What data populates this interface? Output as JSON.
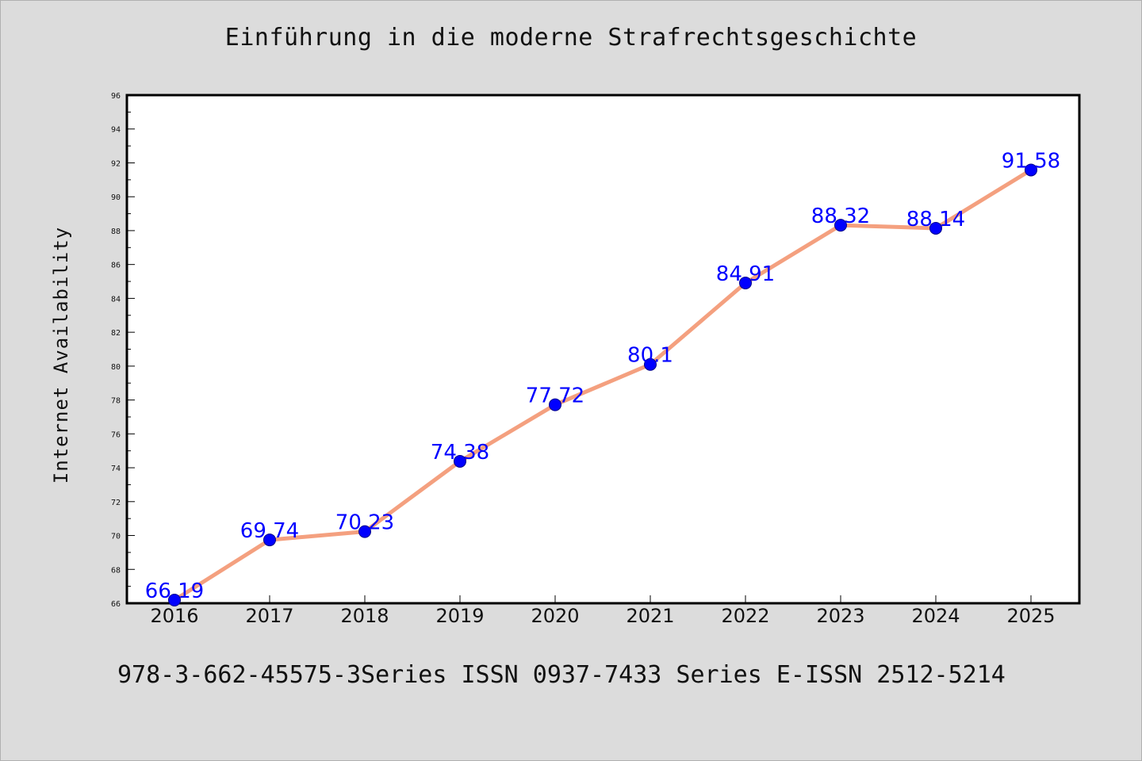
{
  "colors": {
    "line": "#f4a07f",
    "marker": "#0000ff",
    "data_label": "#0000ff",
    "background": "#dcdcdc",
    "plot_background": "#ffffff"
  },
  "footer_text": "978-3-662-45575-3Series ISSN 0937-7433 Series E-ISSN 2512-5214",
  "chart_data": {
    "type": "line",
    "title": "Einführung in die moderne Strafrechtsgeschichte",
    "xlabel": "",
    "ylabel": "Internet Availability",
    "x": [
      "2016",
      "2017",
      "2018",
      "2019",
      "2020",
      "2021",
      "2022",
      "2023",
      "2024",
      "2025"
    ],
    "series": [
      {
        "values": [
          66.19,
          69.74,
          70.23,
          74.38,
          77.72,
          80.1,
          84.91,
          88.32,
          88.14,
          91.58
        ],
        "labels": [
          "66.19",
          "69.74",
          "70.23",
          "74.38",
          "77.72",
          "80.1",
          "84.91",
          "88.32",
          "88.14",
          "91.58"
        ]
      }
    ],
    "ylim": [
      66,
      96
    ],
    "y_ticks": [
      "66",
      "68",
      "70",
      "72",
      "74",
      "76",
      "78",
      "80",
      "82",
      "84",
      "86",
      "88",
      "90",
      "92",
      "94",
      "96"
    ],
    "grid": false,
    "legend": "none"
  }
}
